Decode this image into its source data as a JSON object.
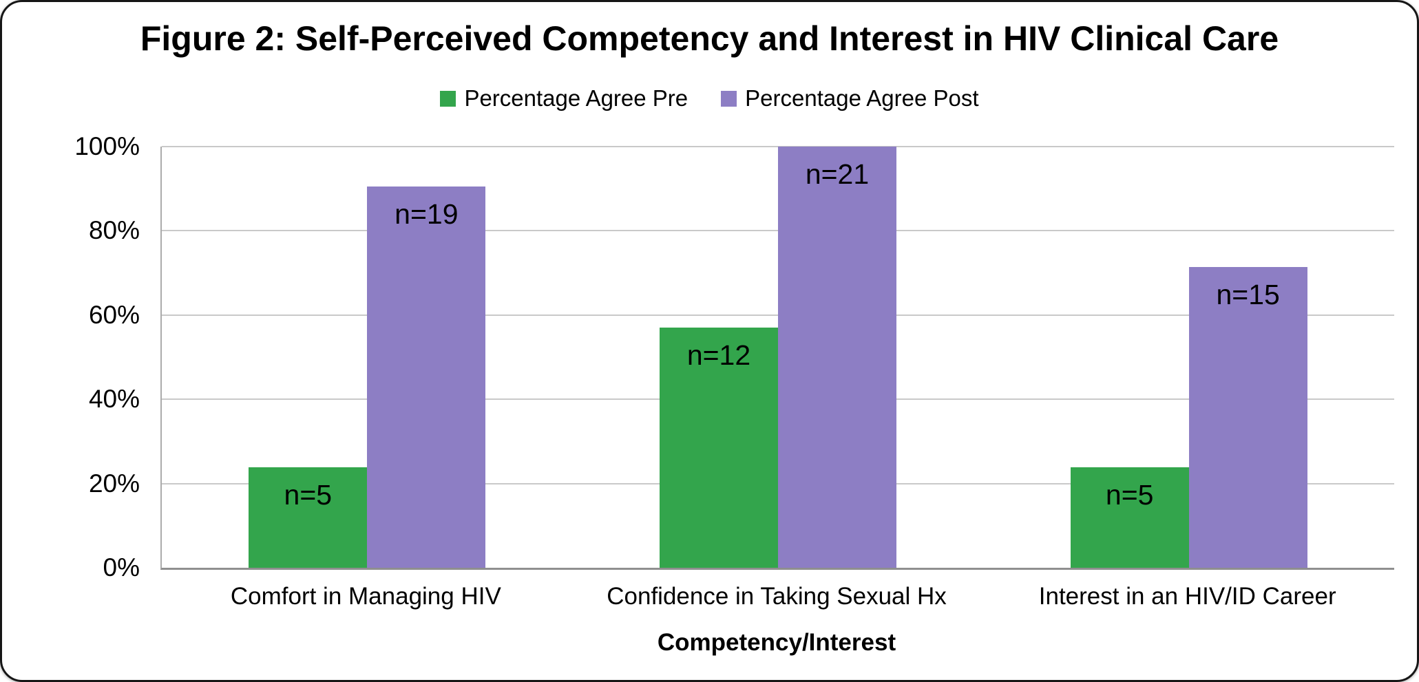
{
  "figure": {
    "background": "#FFFFFF",
    "border_color": "#161616"
  },
  "chart_data": {
    "type": "bar",
    "title": "Figure 2: Self-Perceived Competency and Interest in HIV Clinical Care",
    "xlabel": "Competency/Interest",
    "ylabel": "",
    "categories": [
      "Comfort in Managing HIV",
      "Confidence in Taking Sexual Hx",
      "Interest in an HIV/ID Career"
    ],
    "series": [
      {
        "name": "Percentage Agree Pre",
        "color": "#33A54C",
        "values": [
          23.8,
          57.1,
          23.8
        ],
        "bar_labels": [
          "n=5",
          "n=12",
          "n=5"
        ]
      },
      {
        "name": "Percentage Agree Post",
        "color": "#8D7EC4",
        "values": [
          90.5,
          100,
          71.4
        ],
        "bar_labels": [
          "n=19",
          "n=21",
          "n=15"
        ]
      }
    ],
    "ylim": [
      0,
      100
    ],
    "ytick_values": [
      0,
      20,
      40,
      60,
      80,
      100
    ],
    "yticks": [
      "0%",
      "20%",
      "40%",
      "60%",
      "80%",
      "100%"
    ],
    "grid": true,
    "gridline_color": "#C9C9C9",
    "axis_color": "#8F8F8F",
    "legend_position": "top"
  }
}
